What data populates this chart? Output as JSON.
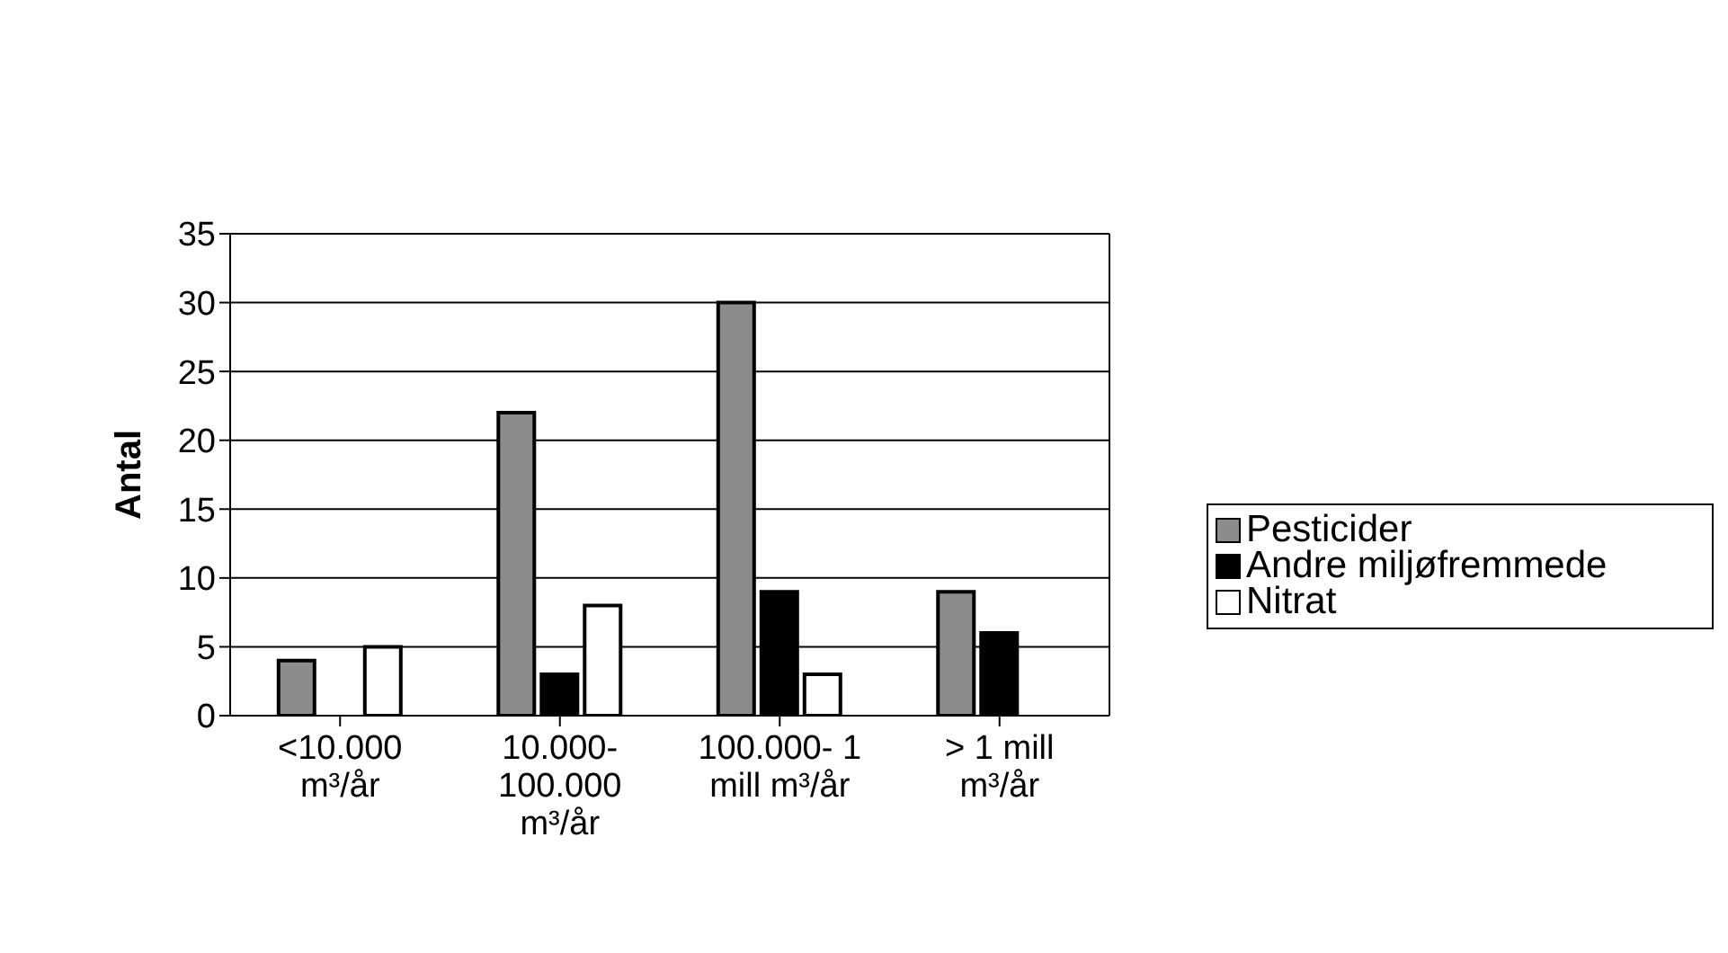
{
  "chart_data": {
    "type": "bar",
    "ylabel": "Antal",
    "categories": [
      "<10.000 m³/år",
      "10.000-100.000 m³/år",
      "100.000- 1 mill m³/år",
      "> 1 mill m³/år"
    ],
    "series": [
      {
        "name": "Pesticider",
        "color": "#8c8c8c",
        "values": [
          4,
          22,
          30,
          9
        ]
      },
      {
        "name": "Andre miljøfremmede",
        "color": "#000000",
        "values": [
          0,
          3,
          9,
          6
        ]
      },
      {
        "name": "Nitrat",
        "color": "#ffffff",
        "values": [
          5,
          8,
          3,
          0
        ]
      }
    ],
    "ylim": [
      0,
      35
    ],
    "yticks": [
      0,
      5,
      10,
      15,
      20,
      25,
      30,
      35
    ],
    "grid": "y",
    "legend": "right"
  }
}
